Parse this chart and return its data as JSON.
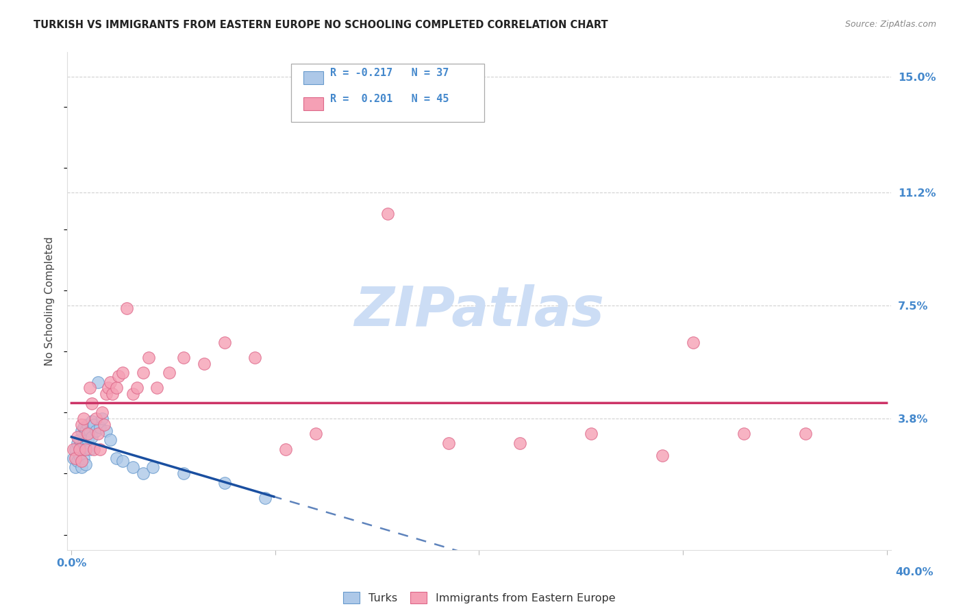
{
  "title": "TURKISH VS IMMIGRANTS FROM EASTERN EUROPE NO SCHOOLING COMPLETED CORRELATION CHART",
  "source": "Source: ZipAtlas.com",
  "ylabel": "No Schooling Completed",
  "xlim": [
    0.0,
    0.4
  ],
  "ylim": [
    -0.005,
    0.158
  ],
  "ytick_positions": [
    0.038,
    0.075,
    0.112,
    0.15
  ],
  "ytick_labels": [
    "3.8%",
    "7.5%",
    "11.2%",
    "15.0%"
  ],
  "xtick_positions": [
    0.0,
    0.1,
    0.2,
    0.3,
    0.4
  ],
  "grid_color": "#cccccc",
  "background_color": "#ffffff",
  "turks_color": "#adc8e8",
  "turks_edge": "#6699cc",
  "turks_trend_color": "#1a4fa0",
  "ee_color": "#f5a0b5",
  "ee_edge": "#dd6688",
  "ee_trend_color": "#cc3366",
  "turks_R": "-0.217",
  "turks_N": "37",
  "ee_R": "0.201",
  "ee_N": "45",
  "watermark": "ZIPatlas",
  "watermark_color": "#ccddf5",
  "axis_label_color": "#4488cc",
  "turks_x": [
    0.001,
    0.002,
    0.002,
    0.003,
    0.003,
    0.004,
    0.004,
    0.005,
    0.005,
    0.005,
    0.006,
    0.006,
    0.006,
    0.007,
    0.007,
    0.007,
    0.008,
    0.008,
    0.009,
    0.009,
    0.01,
    0.01,
    0.011,
    0.012,
    0.013,
    0.014,
    0.015,
    0.017,
    0.019,
    0.022,
    0.025,
    0.03,
    0.035,
    0.04,
    0.055,
    0.075,
    0.095
  ],
  "turks_y": [
    0.025,
    0.022,
    0.028,
    0.03,
    0.024,
    0.031,
    0.026,
    0.034,
    0.028,
    0.022,
    0.035,
    0.03,
    0.025,
    0.034,
    0.029,
    0.023,
    0.036,
    0.031,
    0.034,
    0.028,
    0.037,
    0.032,
    0.036,
    0.034,
    0.05,
    0.035,
    0.038,
    0.034,
    0.031,
    0.025,
    0.024,
    0.022,
    0.02,
    0.022,
    0.02,
    0.017,
    0.012
  ],
  "ee_x": [
    0.001,
    0.002,
    0.003,
    0.004,
    0.005,
    0.005,
    0.006,
    0.007,
    0.008,
    0.009,
    0.01,
    0.011,
    0.012,
    0.013,
    0.014,
    0.015,
    0.016,
    0.017,
    0.018,
    0.019,
    0.02,
    0.022,
    0.023,
    0.025,
    0.027,
    0.03,
    0.032,
    0.035,
    0.038,
    0.042,
    0.048,
    0.055,
    0.065,
    0.075,
    0.09,
    0.105,
    0.12,
    0.155,
    0.185,
    0.22,
    0.255,
    0.29,
    0.305,
    0.33,
    0.36
  ],
  "ee_y": [
    0.028,
    0.025,
    0.032,
    0.028,
    0.024,
    0.036,
    0.038,
    0.028,
    0.033,
    0.048,
    0.043,
    0.028,
    0.038,
    0.033,
    0.028,
    0.04,
    0.036,
    0.046,
    0.048,
    0.05,
    0.046,
    0.048,
    0.052,
    0.053,
    0.074,
    0.046,
    0.048,
    0.053,
    0.058,
    0.048,
    0.053,
    0.058,
    0.056,
    0.063,
    0.058,
    0.028,
    0.033,
    0.105,
    0.03,
    0.03,
    0.033,
    0.026,
    0.063,
    0.033,
    0.033
  ]
}
